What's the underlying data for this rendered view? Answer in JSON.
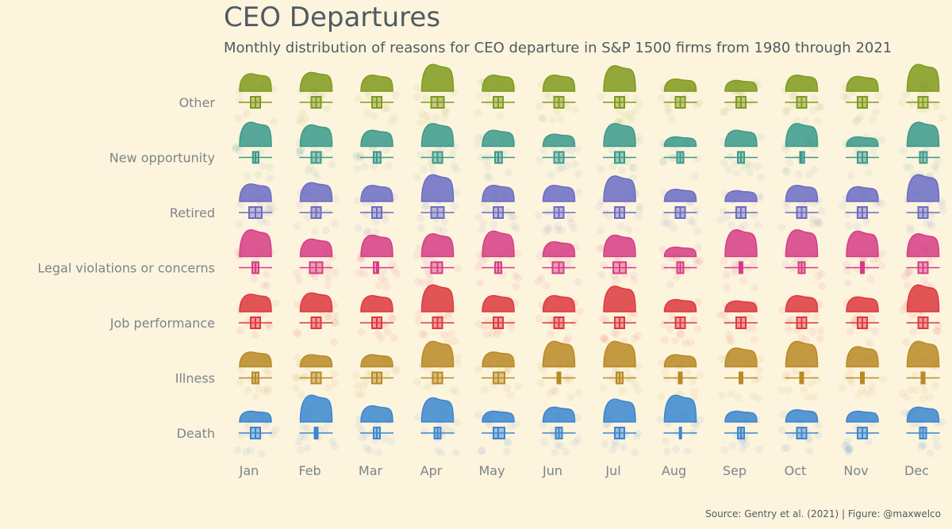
{
  "title": "CEO Departures",
  "subtitle": "Monthly distribution of reasons for CEO departure in S&P 1500 firms from 1980 through 2021",
  "caption": "Source: Gentry et al. (2021) | Figure: @maxwelco",
  "chart_data": {
    "type": "raincloud",
    "months": [
      "Jan",
      "Feb",
      "Mar",
      "Apr",
      "May",
      "Jun",
      "Jul",
      "Aug",
      "Sep",
      "Oct",
      "Nov",
      "Dec"
    ],
    "reasons": [
      {
        "name": "Other",
        "color": "#7f9a1e",
        "height": [
          0.65,
          0.7,
          0.6,
          1.0,
          0.6,
          0.6,
          0.95,
          0.45,
          0.4,
          0.6,
          0.55,
          1.0
        ],
        "box": [
          [
            0.35,
            0.5,
            0.65
          ],
          [
            0.35,
            0.5,
            0.65
          ],
          [
            0.35,
            0.5,
            0.65
          ],
          [
            0.3,
            0.5,
            0.7
          ],
          [
            0.35,
            0.5,
            0.65
          ],
          [
            0.35,
            0.5,
            0.65
          ],
          [
            0.35,
            0.5,
            0.65
          ],
          [
            0.35,
            0.5,
            0.65
          ],
          [
            0.35,
            0.5,
            0.65
          ],
          [
            0.35,
            0.5,
            0.65
          ],
          [
            0.35,
            0.5,
            0.65
          ],
          [
            0.35,
            0.5,
            0.65
          ]
        ]
      },
      {
        "name": "New opportunity",
        "color": "#3a9a8c",
        "height": [
          0.9,
          0.8,
          0.6,
          0.85,
          0.6,
          0.45,
          0.85,
          0.35,
          0.6,
          0.85,
          0.35,
          0.9
        ],
        "box": [
          [
            0.42,
            0.5,
            0.6
          ],
          [
            0.35,
            0.5,
            0.65
          ],
          [
            0.4,
            0.5,
            0.62
          ],
          [
            0.35,
            0.5,
            0.65
          ],
          [
            0.4,
            0.5,
            0.62
          ],
          [
            0.35,
            0.5,
            0.65
          ],
          [
            0.35,
            0.5,
            0.65
          ],
          [
            0.4,
            0.5,
            0.6
          ],
          [
            0.4,
            0.5,
            0.6
          ],
          [
            0.45,
            0.5,
            0.58
          ],
          [
            0.35,
            0.5,
            0.65
          ],
          [
            0.4,
            0.5,
            0.62
          ]
        ]
      },
      {
        "name": "Retired",
        "color": "#6a6cc6",
        "height": [
          0.65,
          0.7,
          0.6,
          1.0,
          0.6,
          0.6,
          0.95,
          0.45,
          0.4,
          0.6,
          0.55,
          1.0
        ],
        "box": [
          [
            0.3,
            0.5,
            0.7
          ],
          [
            0.35,
            0.5,
            0.65
          ],
          [
            0.35,
            0.5,
            0.65
          ],
          [
            0.3,
            0.5,
            0.7
          ],
          [
            0.35,
            0.5,
            0.65
          ],
          [
            0.35,
            0.5,
            0.65
          ],
          [
            0.35,
            0.5,
            0.65
          ],
          [
            0.35,
            0.5,
            0.65
          ],
          [
            0.35,
            0.5,
            0.65
          ],
          [
            0.35,
            0.5,
            0.65
          ],
          [
            0.35,
            0.5,
            0.65
          ],
          [
            0.35,
            0.5,
            0.65
          ]
        ]
      },
      {
        "name": "Legal violations or concerns",
        "color": "#d63c86",
        "height": [
          1.0,
          0.65,
          0.8,
          0.85,
          0.95,
          0.55,
          0.8,
          0.35,
          1.0,
          1.0,
          0.95,
          0.85
        ],
        "box": [
          [
            0.4,
            0.5,
            0.6
          ],
          [
            0.3,
            0.5,
            0.7
          ],
          [
            0.4,
            0.5,
            0.55
          ],
          [
            0.3,
            0.5,
            0.65
          ],
          [
            0.4,
            0.5,
            0.6
          ],
          [
            0.3,
            0.5,
            0.65
          ],
          [
            0.3,
            0.5,
            0.7
          ],
          [
            0.4,
            0.5,
            0.6
          ],
          [
            0.45,
            0.5,
            0.55
          ],
          [
            0.4,
            0.5,
            0.6
          ],
          [
            0.45,
            0.5,
            0.55
          ],
          [
            0.35,
            0.5,
            0.65
          ]
        ]
      },
      {
        "name": "Job performance",
        "color": "#dd3840",
        "height": [
          0.65,
          0.7,
          0.6,
          1.0,
          0.6,
          0.6,
          0.95,
          0.45,
          0.4,
          0.6,
          0.55,
          1.0
        ],
        "box": [
          [
            0.35,
            0.5,
            0.65
          ],
          [
            0.35,
            0.5,
            0.65
          ],
          [
            0.35,
            0.5,
            0.65
          ],
          [
            0.35,
            0.5,
            0.65
          ],
          [
            0.35,
            0.5,
            0.65
          ],
          [
            0.35,
            0.5,
            0.65
          ],
          [
            0.35,
            0.5,
            0.65
          ],
          [
            0.35,
            0.5,
            0.65
          ],
          [
            0.35,
            0.5,
            0.65
          ],
          [
            0.35,
            0.5,
            0.65
          ],
          [
            0.35,
            0.5,
            0.65
          ],
          [
            0.35,
            0.5,
            0.65
          ]
        ]
      },
      {
        "name": "Illness",
        "color": "#b88a26",
        "height": [
          0.55,
          0.45,
          0.45,
          0.95,
          0.55,
          0.95,
          0.95,
          0.45,
          0.7,
          0.95,
          0.75,
          0.95
        ],
        "box": [
          [
            0.4,
            0.5,
            0.6
          ],
          [
            0.35,
            0.5,
            0.65
          ],
          [
            0.35,
            0.5,
            0.65
          ],
          [
            0.35,
            0.5,
            0.65
          ],
          [
            0.35,
            0.5,
            0.7
          ],
          [
            0.45,
            0.5,
            0.55
          ],
          [
            0.4,
            0.5,
            0.6
          ],
          [
            0.45,
            0.5,
            0.55
          ],
          [
            0.45,
            0.5,
            0.55
          ],
          [
            0.45,
            0.5,
            0.55
          ],
          [
            0.45,
            0.5,
            0.55
          ],
          [
            0.45,
            0.5,
            0.55
          ]
        ]
      },
      {
        "name": "Death",
        "color": "#3a86d0",
        "height": [
          0.4,
          1.0,
          0.6,
          0.9,
          0.4,
          0.55,
          0.85,
          1.0,
          0.4,
          0.45,
          0.4,
          0.55
        ],
        "box": [
          [
            0.35,
            0.5,
            0.65
          ],
          [
            0.45,
            0.5,
            0.55
          ],
          [
            0.4,
            0.5,
            0.6
          ],
          [
            0.4,
            0.5,
            0.6
          ],
          [
            0.35,
            0.5,
            0.7
          ],
          [
            0.4,
            0.5,
            0.6
          ],
          [
            0.35,
            0.5,
            0.65
          ],
          [
            0.48,
            0.5,
            0.52
          ],
          [
            0.4,
            0.5,
            0.6
          ],
          [
            0.35,
            0.5,
            0.65
          ],
          [
            0.35,
            0.5,
            0.65
          ],
          [
            0.4,
            0.5,
            0.6
          ]
        ]
      }
    ]
  }
}
